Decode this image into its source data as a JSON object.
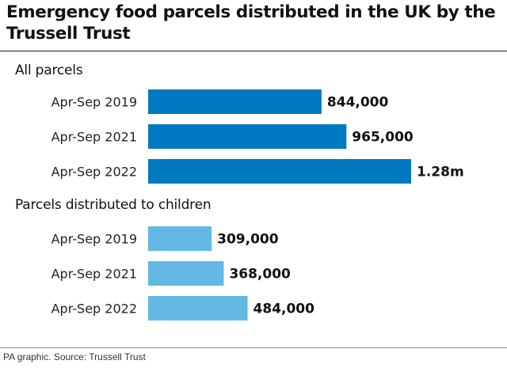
{
  "title": "Emergency food parcels distributed in the UK by the Trussell Trust",
  "footer": "PA graphic. Source: Trussell Trust",
  "colors": {
    "all_parcels": "#0079C1",
    "children": "#63B8E4"
  },
  "chart_data": [
    {
      "type": "bar",
      "orientation": "horizontal",
      "title": "All parcels",
      "categories": [
        "Apr-Sep 2019",
        "Apr-Sep 2021",
        "Apr-Sep 2022"
      ],
      "values": [
        844000,
        965000,
        1280000
      ],
      "data_labels": [
        "844,000",
        "965,000",
        "1.28m"
      ],
      "color": "#0079C1"
    },
    {
      "type": "bar",
      "orientation": "horizontal",
      "title": "Parcels distributed to children",
      "categories": [
        "Apr-Sep 2019",
        "Apr-Sep 2021",
        "Apr-Sep 2022"
      ],
      "values": [
        309000,
        368000,
        484000
      ],
      "data_labels": [
        "309,000",
        "368,000",
        "484,000"
      ],
      "color": "#63B8E4"
    }
  ]
}
